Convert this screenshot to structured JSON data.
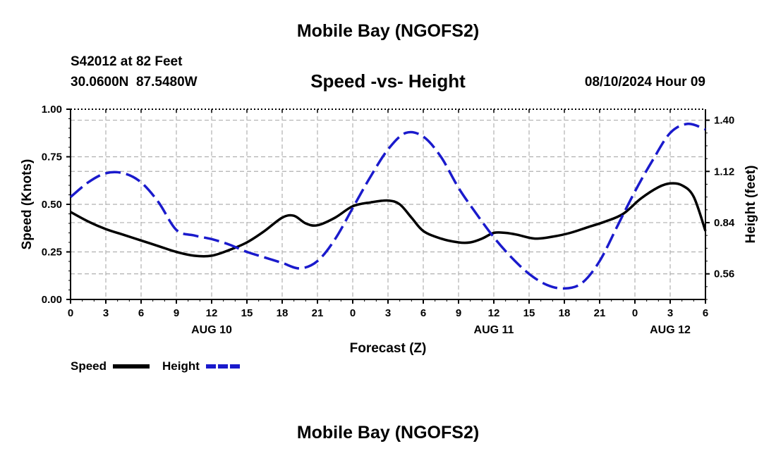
{
  "header": {
    "title": "Mobile Bay (NGOFS2)",
    "station": "S42012 at 82 Feet",
    "coords": "30.0600N  87.5480W",
    "subtitle": "Speed -vs- Height",
    "run_time": "08/10/2024 Hour 09"
  },
  "footer": {
    "title": "Mobile Bay (NGOFS2)"
  },
  "legend": {
    "speed_label": "Speed",
    "height_label": "Height"
  },
  "colors": {
    "speed": "#000000",
    "height": "#1a1acc",
    "grid": "#b0b0b0"
  },
  "chart_data": {
    "type": "line",
    "title": "Speed -vs- Height",
    "xlabel": "Forecast (Z)",
    "ylabel": "Speed (Knots)",
    "y2label": "Height (feet)",
    "xlim": [
      0,
      54
    ],
    "ylim": [
      0,
      1.0
    ],
    "y2lim": [
      0.42,
      1.46
    ],
    "x_ticks": [
      0,
      3,
      6,
      9,
      12,
      15,
      18,
      21,
      24,
      27,
      30,
      33,
      36,
      39,
      42,
      45,
      48,
      51,
      54
    ],
    "x_tick_labels": [
      "0",
      "3",
      "6",
      "9",
      "12",
      "15",
      "18",
      "21",
      "0",
      "3",
      "6",
      "9",
      "12",
      "15",
      "18",
      "21",
      "0",
      "3",
      "6"
    ],
    "date_labels": [
      {
        "x": 12,
        "label": "AUG 10"
      },
      {
        "x": 36,
        "label": "AUG 11"
      },
      {
        "x": 51,
        "label": "AUG 12"
      }
    ],
    "y_ticks": [
      0.0,
      0.25,
      0.5,
      0.75,
      1.0
    ],
    "y_tick_labels": [
      "0.00",
      "0.25",
      "0.50",
      "0.75",
      "1.00"
    ],
    "y2_ticks": [
      0.56,
      0.84,
      1.12,
      1.4
    ],
    "y2_tick_labels": [
      "0.56",
      "0.84",
      "1.12",
      "1.40"
    ],
    "grid": true,
    "series": [
      {
        "name": "Speed",
        "axis": "left",
        "style": "solid",
        "x": [
          0,
          1.5,
          3,
          4.5,
          6,
          7.5,
          9,
          10.5,
          12,
          13.5,
          15,
          16.5,
          18,
          19,
          20,
          21,
          22.5,
          24,
          25.5,
          27,
          28,
          29,
          30,
          31.5,
          33,
          34,
          35,
          36,
          37,
          38,
          39.5,
          41,
          42.5,
          44,
          45.5,
          47,
          48.5,
          50,
          51,
          52,
          53,
          54
        ],
        "values": [
          0.46,
          0.41,
          0.37,
          0.34,
          0.31,
          0.28,
          0.25,
          0.23,
          0.23,
          0.26,
          0.3,
          0.36,
          0.43,
          0.44,
          0.4,
          0.39,
          0.43,
          0.49,
          0.51,
          0.52,
          0.5,
          0.43,
          0.36,
          0.32,
          0.3,
          0.3,
          0.32,
          0.35,
          0.35,
          0.34,
          0.32,
          0.33,
          0.35,
          0.38,
          0.41,
          0.45,
          0.53,
          0.59,
          0.61,
          0.6,
          0.54,
          0.36
        ]
      },
      {
        "name": "Height",
        "axis": "right",
        "style": "dashed",
        "x": [
          0,
          1.5,
          3,
          4.5,
          6,
          7.5,
          9,
          10.5,
          12,
          13.5,
          15,
          16.5,
          18,
          19.5,
          21,
          22.5,
          24,
          25.5,
          27,
          28.5,
          30,
          31.5,
          33,
          34.5,
          36,
          37.5,
          39,
          40.5,
          42,
          43.5,
          45,
          46.5,
          48,
          49.5,
          51,
          52.5,
          54
        ],
        "values": [
          0.98,
          1.06,
          1.11,
          1.11,
          1.06,
          0.95,
          0.8,
          0.77,
          0.75,
          0.72,
          0.68,
          0.65,
          0.62,
          0.59,
          0.63,
          0.75,
          0.92,
          1.09,
          1.24,
          1.33,
          1.31,
          1.2,
          1.03,
          0.89,
          0.76,
          0.65,
          0.56,
          0.5,
          0.48,
          0.51,
          0.63,
          0.82,
          1.01,
          1.18,
          1.33,
          1.38,
          1.35
        ]
      }
    ]
  }
}
